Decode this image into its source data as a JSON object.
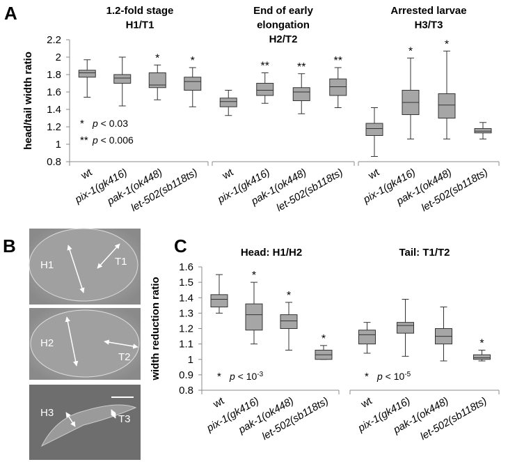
{
  "chart_data": [
    {
      "type": "box",
      "panel_label": "A",
      "ylabel": "head/tail width ratio",
      "ylim": [
        0.8,
        2.2
      ],
      "yticks": [
        0.8,
        1,
        1.2,
        1.4,
        1.6,
        1.8,
        2,
        2.2
      ],
      "legend": [
        {
          "symbol": "*",
          "variable": "p",
          "relation": "< 0.03"
        },
        {
          "symbol": "**",
          "variable": "p",
          "relation": "< 0.006"
        }
      ],
      "groups": [
        {
          "title": [
            "1.2-fold stage",
            "H1/T1"
          ],
          "categories": [
            "wt",
            "pix-1(gk416)",
            "pak-1(ok448)",
            "let-502(sb118ts)"
          ],
          "boxes": [
            {
              "whisker_low": 1.54,
              "q1": 1.77,
              "median": 1.82,
              "q3": 1.85,
              "whisker_high": 1.97
            },
            {
              "whisker_low": 1.44,
              "q1": 1.7,
              "median": 1.76,
              "q3": 1.8,
              "whisker_high": 2.0
            },
            {
              "whisker_low": 1.51,
              "q1": 1.65,
              "median": 1.68,
              "q3": 1.82,
              "whisker_high": 1.91
            },
            {
              "whisker_low": 1.43,
              "q1": 1.62,
              "median": 1.72,
              "q3": 1.77,
              "whisker_high": 1.88
            }
          ],
          "annotations": [
            null,
            null,
            "*",
            "*"
          ]
        },
        {
          "title": [
            "End of early",
            "elongation",
            "H2/T2"
          ],
          "categories": [
            "wt",
            "pix-1(gk416)",
            "pak-1(ok448)",
            "let-502(sb118ts)"
          ],
          "boxes": [
            {
              "whisker_low": 1.33,
              "q1": 1.43,
              "median": 1.49,
              "q3": 1.53,
              "whisker_high": 1.62
            },
            {
              "whisker_low": 1.47,
              "q1": 1.56,
              "median": 1.62,
              "q3": 1.7,
              "whisker_high": 1.82
            },
            {
              "whisker_low": 1.35,
              "q1": 1.5,
              "median": 1.6,
              "q3": 1.65,
              "whisker_high": 1.81
            },
            {
              "whisker_low": 1.42,
              "q1": 1.56,
              "median": 1.66,
              "q3": 1.75,
              "whisker_high": 1.88
            }
          ],
          "annotations": [
            null,
            "**",
            "**",
            "**"
          ]
        },
        {
          "title": [
            "Arrested larvae",
            "H3/T3"
          ],
          "categories": [
            "wt",
            "pix-1(gk416)",
            "pak-1(ok448)",
            "let-502(sb118ts)"
          ],
          "boxes": [
            {
              "whisker_low": 0.86,
              "q1": 1.1,
              "median": 1.18,
              "q3": 1.24,
              "whisker_high": 1.42
            },
            {
              "whisker_low": 1.06,
              "q1": 1.34,
              "median": 1.48,
              "q3": 1.62,
              "whisker_high": 1.99
            },
            {
              "whisker_low": 1.06,
              "q1": 1.3,
              "median": 1.45,
              "q3": 1.58,
              "whisker_high": 2.07
            },
            {
              "whisker_low": 1.06,
              "q1": 1.13,
              "median": 1.15,
              "q3": 1.18,
              "whisker_high": 1.25
            }
          ],
          "annotations": [
            null,
            "*",
            "*",
            null
          ]
        }
      ]
    },
    {
      "type": "box",
      "panel_label": "C",
      "ylabel": "width reduction ratio",
      "ylim": [
        0.8,
        1.6
      ],
      "yticks": [
        0.8,
        0.9,
        1,
        1.1,
        1.2,
        1.3,
        1.4,
        1.5,
        1.6
      ],
      "groups": [
        {
          "title": [
            "Head:  H1/H2"
          ],
          "categories": [
            "wt",
            "pix-1(gk416)",
            "pak-1(ok448)",
            "let-502(sb118ts)"
          ],
          "boxes": [
            {
              "whisker_low": 1.3,
              "q1": 1.34,
              "median": 1.39,
              "q3": 1.42,
              "whisker_high": 1.55
            },
            {
              "whisker_low": 1.1,
              "q1": 1.19,
              "median": 1.29,
              "q3": 1.36,
              "whisker_high": 1.5
            },
            {
              "whisker_low": 1.06,
              "q1": 1.2,
              "median": 1.25,
              "q3": 1.29,
              "whisker_high": 1.37
            },
            {
              "whisker_low": 1.0,
              "q1": 1.0,
              "median": 1.03,
              "q3": 1.06,
              "whisker_high": 1.09
            }
          ],
          "annotations": [
            null,
            "*",
            "*",
            "*"
          ],
          "legend": {
            "symbol": "*",
            "variable": "p",
            "relation": "< 10",
            "exponent": "-3"
          }
        },
        {
          "title": [
            "Tail:  T1/T2"
          ],
          "categories": [
            "wt",
            "pix-1(gk416)",
            "pak-1(ok448)",
            "let-502(sb118ts)"
          ],
          "boxes": [
            {
              "whisker_low": 1.04,
              "q1": 1.1,
              "median": 1.16,
              "q3": 1.19,
              "whisker_high": 1.24
            },
            {
              "whisker_low": 1.02,
              "q1": 1.17,
              "median": 1.22,
              "q3": 1.24,
              "whisker_high": 1.39
            },
            {
              "whisker_low": 0.99,
              "q1": 1.1,
              "median": 1.15,
              "q3": 1.2,
              "whisker_high": 1.34
            },
            {
              "whisker_low": 0.99,
              "q1": 1.0,
              "median": 1.01,
              "q3": 1.03,
              "whisker_high": 1.06
            }
          ],
          "annotations": [
            null,
            null,
            null,
            "*"
          ],
          "legend": {
            "symbol": "*",
            "variable": "p",
            "relation": "< 10",
            "exponent": "-5"
          }
        }
      ]
    }
  ],
  "micrograph": {
    "panel_label": "B",
    "images": [
      {
        "labels": [
          "H1",
          "T1"
        ]
      },
      {
        "labels": [
          "H2",
          "T2"
        ]
      },
      {
        "labels": [
          "H3",
          "T3"
        ]
      }
    ]
  }
}
